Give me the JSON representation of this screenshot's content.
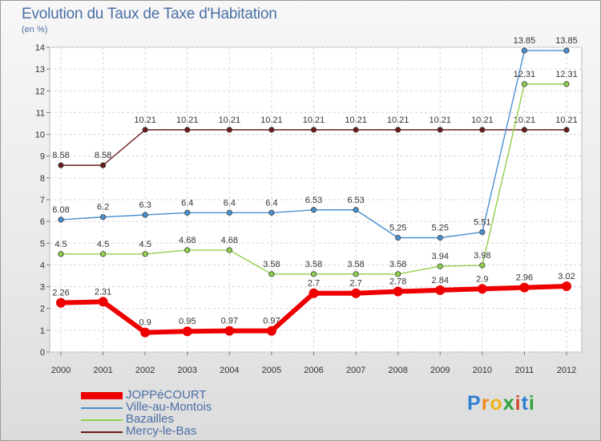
{
  "title": "Evolution du Taux de Taxe d'Habitation",
  "subtitle": "(en %)",
  "brand": {
    "letters": [
      "P",
      "r",
      "o",
      "x",
      "i",
      "t",
      "i"
    ],
    "colors": [
      "#2f7fd1",
      "#f08a1c",
      "#f0b41c",
      "#2fa23a",
      "#d14a2f",
      "#2f7fd1",
      "#2fa23a"
    ]
  },
  "chart_data": {
    "type": "line",
    "categories": [
      "2000",
      "2001",
      "2002",
      "2003",
      "2004",
      "2005",
      "2006",
      "2007",
      "2008",
      "2009",
      "2010",
      "2011",
      "2012"
    ],
    "ylim": [
      0,
      14
    ],
    "yticks": [
      "0",
      "1",
      "2",
      "3",
      "4",
      "5",
      "6",
      "7",
      "8",
      "9",
      "10",
      "11",
      "12",
      "13",
      "14"
    ],
    "grid": true,
    "legend_position": "bottom-left",
    "series": [
      {
        "name": "Mercy-le-Bas",
        "color": "#6b1a1a",
        "values": [
          8.58,
          8.58,
          10.21,
          10.21,
          10.21,
          10.21,
          10.21,
          10.21,
          10.21,
          10.21,
          10.21,
          10.21,
          10.21
        ],
        "labels": [
          "8.58",
          "8.58",
          "10.21",
          "10.21",
          "10.21",
          "10.21",
          "10.21",
          "10.21",
          "10.21",
          "10.21",
          "10.21",
          "10.21",
          "10.21"
        ]
      },
      {
        "name": "Ville-au-Montois",
        "color": "#4a90d0",
        "values": [
          6.08,
          6.2,
          6.3,
          6.4,
          6.4,
          6.4,
          6.53,
          6.53,
          5.25,
          5.25,
          5.51,
          13.85,
          13.85
        ],
        "labels": [
          "6.08",
          "6.2",
          "6.3",
          "6.4",
          "6.4",
          "6.4",
          "6.53",
          "6.53",
          "5.25",
          "5.25",
          "5.51",
          "13.85",
          "13.85"
        ]
      },
      {
        "name": "Bazailles",
        "color": "#8ed14a",
        "values": [
          4.5,
          4.5,
          4.5,
          4.68,
          4.68,
          3.58,
          3.58,
          3.58,
          3.58,
          3.94,
          3.98,
          12.31,
          12.31
        ],
        "labels": [
          "4.5",
          "4.5",
          "4.5",
          "4.68",
          "4.68",
          "3.58",
          "3.58",
          "3.58",
          "3.58",
          "3.94",
          "3.98",
          "12.31",
          "12.31"
        ]
      },
      {
        "name": "JOPPéCOURT",
        "color": "#ee0000",
        "values": [
          2.26,
          2.31,
          0.9,
          0.95,
          0.97,
          0.97,
          2.7,
          2.7,
          2.78,
          2.84,
          2.9,
          2.96,
          3.02
        ],
        "labels": [
          "2.26",
          "2.31",
          "0.9",
          "0.95",
          "0.97",
          "0.97",
          "2.7",
          "2.7",
          "2.78",
          "2.84",
          "2.9",
          "2.96",
          "3.02"
        ]
      }
    ],
    "legend": [
      "JOPPéCOURT",
      "Ville-au-Montois",
      "Bazailles",
      "Mercy-le-Bas"
    ]
  }
}
